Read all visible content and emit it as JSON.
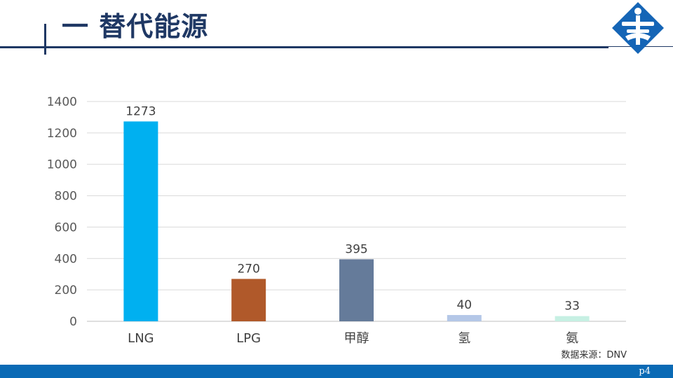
{
  "header": {
    "title": "一 替代能源"
  },
  "logo": {
    "icon": "organization-emblem-icon"
  },
  "chart_data": {
    "type": "bar",
    "categories": [
      "LNG",
      "LPG",
      "甲醇",
      "氢",
      "氨"
    ],
    "values": [
      1273,
      270,
      395,
      40,
      33
    ],
    "data_labels": [
      "1273",
      "270",
      "395",
      "40",
      "33"
    ],
    "bar_colors": [
      "#00b0f0",
      "#b0592a",
      "#657b9a",
      "#b4c7e7",
      "#c6f0e3"
    ],
    "title": "",
    "xlabel": "",
    "ylabel": "",
    "ylim": [
      0,
      1400
    ],
    "yticks": [
      0,
      200,
      400,
      600,
      800,
      1000,
      1200,
      1400
    ],
    "grid": true,
    "legend": "none"
  },
  "source": "数据来源：DNV",
  "footer": {
    "page": "p4",
    "bar_color": "#0a6ab5"
  }
}
